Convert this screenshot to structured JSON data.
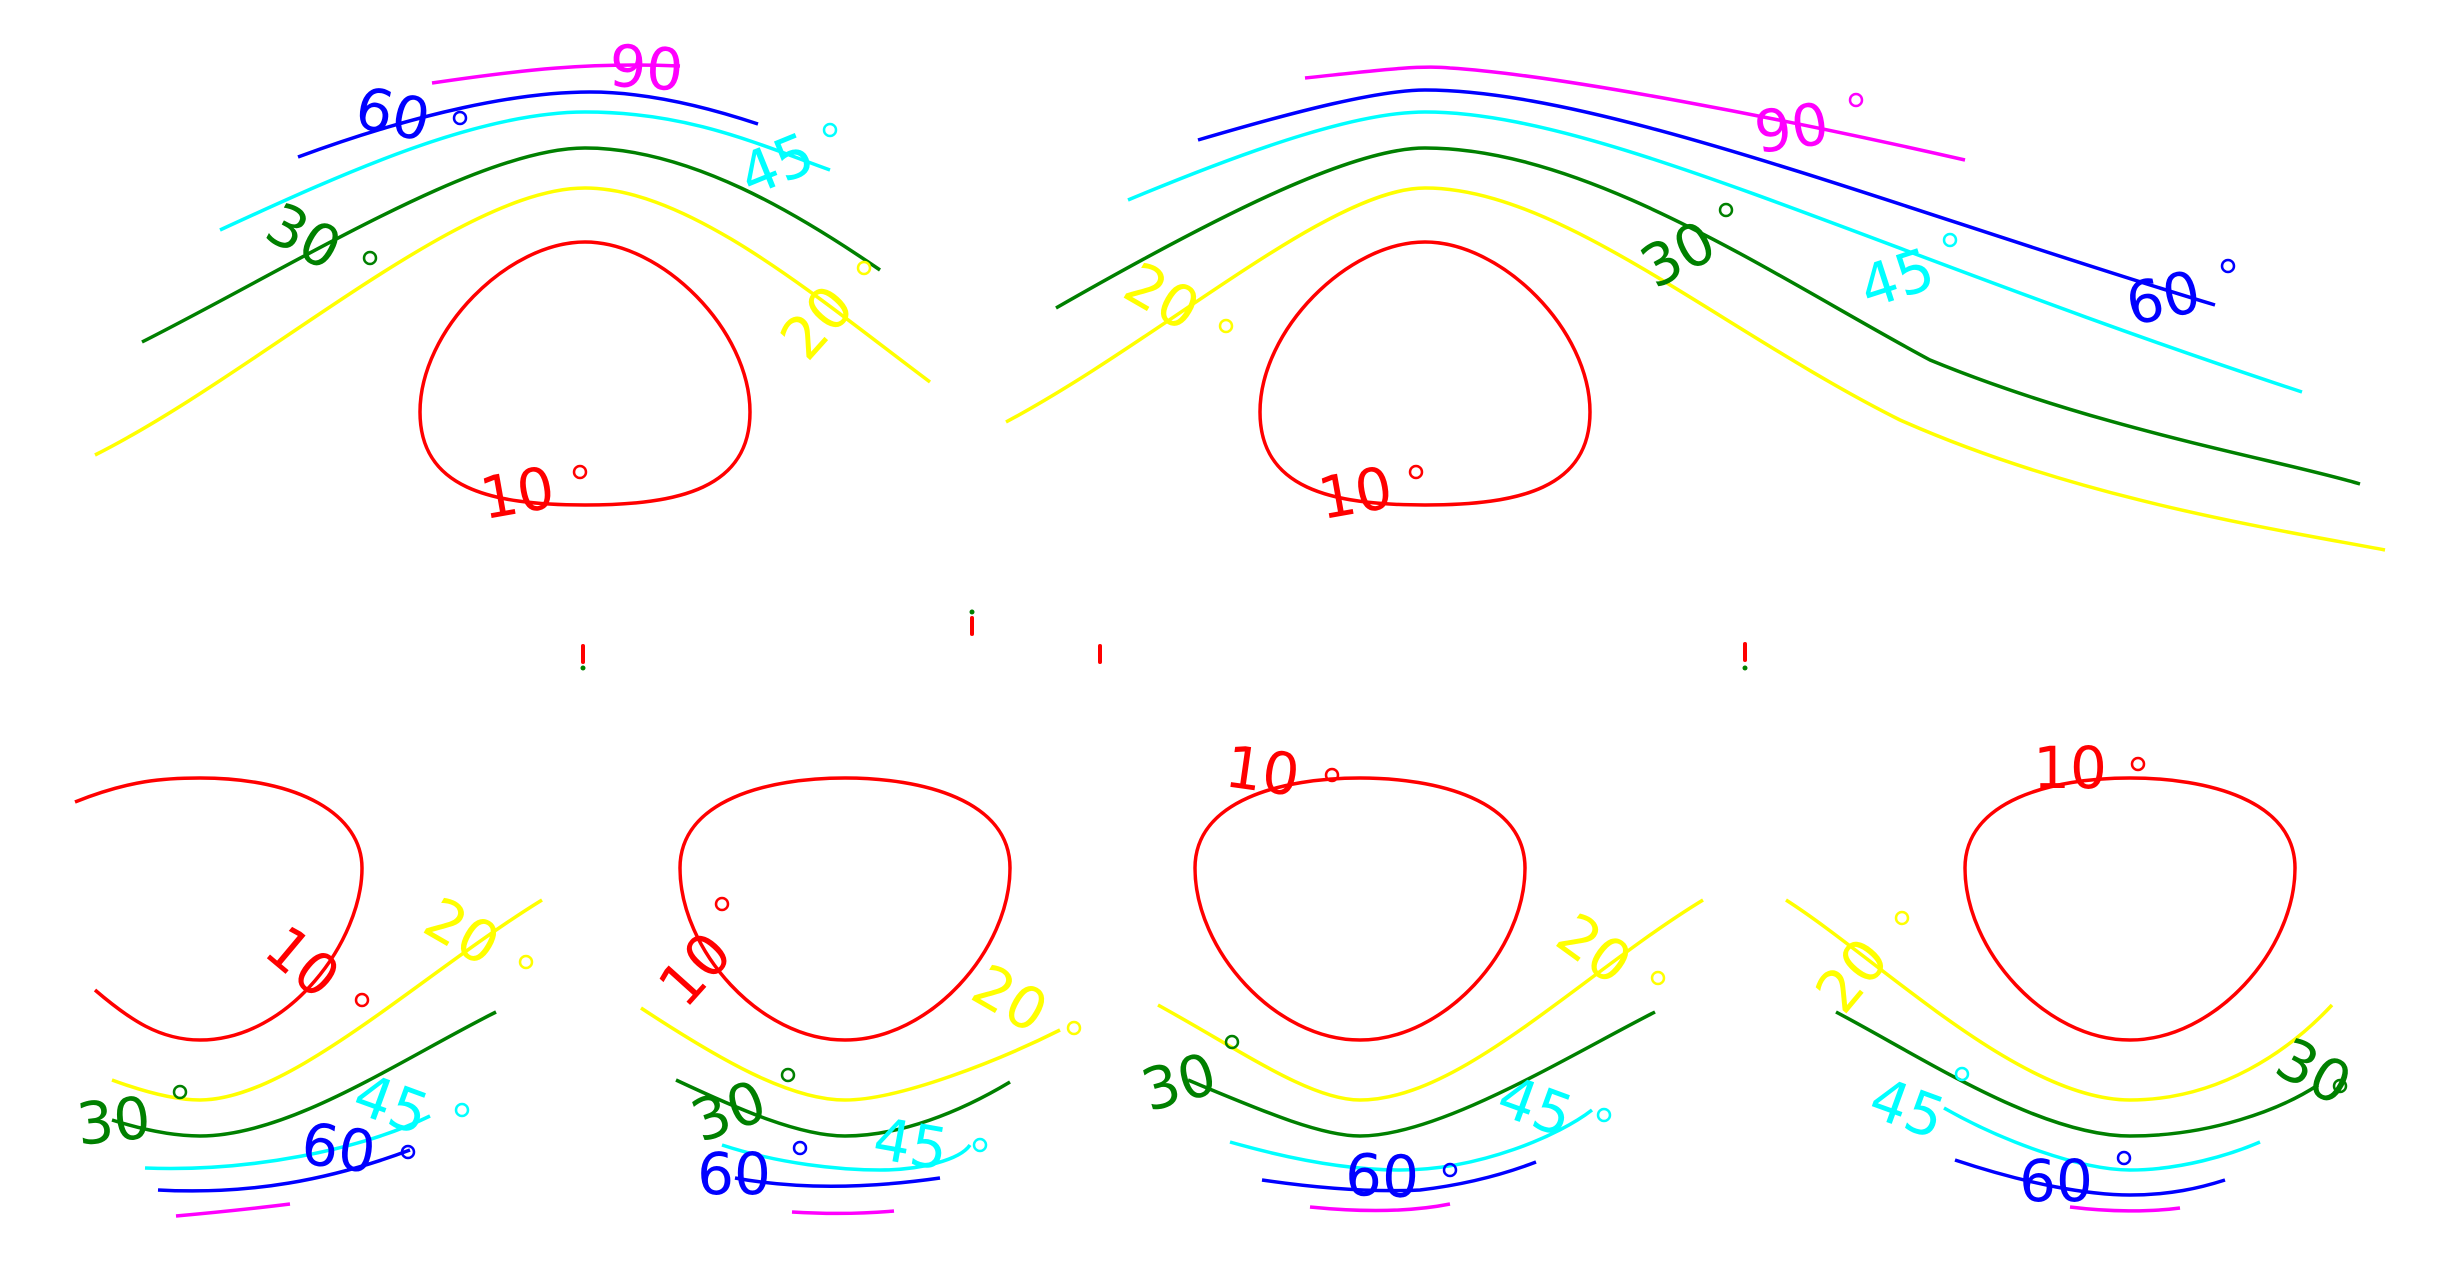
{
  "chart_data": {
    "type": "contour",
    "levels": [
      {
        "value": 10,
        "label": "10",
        "color": "#ff0000"
      },
      {
        "value": 20,
        "label": "20",
        "color": "#ffff00"
      },
      {
        "value": 30,
        "label": "30",
        "color": "#008000"
      },
      {
        "value": 45,
        "label": "45",
        "color": "#00ffff"
      },
      {
        "value": 60,
        "label": "60",
        "color": "#0000ff"
      },
      {
        "value": 90,
        "label": "90",
        "color": "#ff00ff"
      }
    ],
    "degree_symbol": "°",
    "panels": [
      {
        "name": "top-left",
        "labels": [
          "60",
          "45",
          "30",
          "20",
          "10",
          "90"
        ]
      },
      {
        "name": "top-right",
        "labels": [
          "90",
          "30",
          "45",
          "60",
          "20",
          "10"
        ]
      },
      {
        "name": "bottom-1",
        "labels": [
          "10",
          "20",
          "30",
          "45",
          "60"
        ]
      },
      {
        "name": "bottom-2",
        "labels": [
          "10",
          "20",
          "30",
          "45",
          "60"
        ]
      },
      {
        "name": "bottom-3",
        "labels": [
          "10",
          "20",
          "30",
          "45",
          "60"
        ]
      },
      {
        "name": "bottom-4",
        "labels": [
          "10",
          "20",
          "30",
          "45",
          "60"
        ]
      }
    ]
  }
}
